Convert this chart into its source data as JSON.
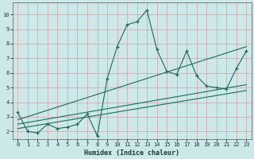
{
  "title": "",
  "xlabel": "Humidex (Indice chaleur)",
  "ylabel": "",
  "bg_color": "#cce8e8",
  "grid_color": "#b8d4d4",
  "line_color": "#1a6b5a",
  "xlim": [
    -0.5,
    23.5
  ],
  "ylim": [
    1.5,
    10.8
  ],
  "xticks": [
    0,
    1,
    2,
    3,
    4,
    5,
    6,
    7,
    8,
    9,
    10,
    11,
    12,
    13,
    14,
    15,
    16,
    17,
    18,
    19,
    20,
    21,
    22,
    23
  ],
  "yticks": [
    2,
    3,
    4,
    5,
    6,
    7,
    8,
    9,
    10
  ],
  "main_x": [
    0,
    1,
    2,
    3,
    4,
    5,
    6,
    7,
    8,
    9,
    10,
    11,
    12,
    13,
    14,
    15,
    16,
    17,
    18,
    19,
    20,
    21,
    22,
    23
  ],
  "main_y": [
    3.3,
    2.0,
    1.9,
    2.5,
    2.2,
    2.3,
    2.5,
    3.2,
    1.7,
    5.6,
    7.8,
    9.3,
    9.5,
    10.3,
    7.6,
    6.1,
    5.9,
    7.5,
    5.8,
    5.1,
    5.0,
    4.9,
    6.3,
    7.5
  ],
  "line1_x": [
    0,
    23
  ],
  "line1_y": [
    2.8,
    7.8
  ],
  "line2_x": [
    0,
    23
  ],
  "line2_y": [
    2.5,
    5.2
  ],
  "line3_x": [
    0,
    23
  ],
  "line3_y": [
    2.2,
    4.8
  ]
}
